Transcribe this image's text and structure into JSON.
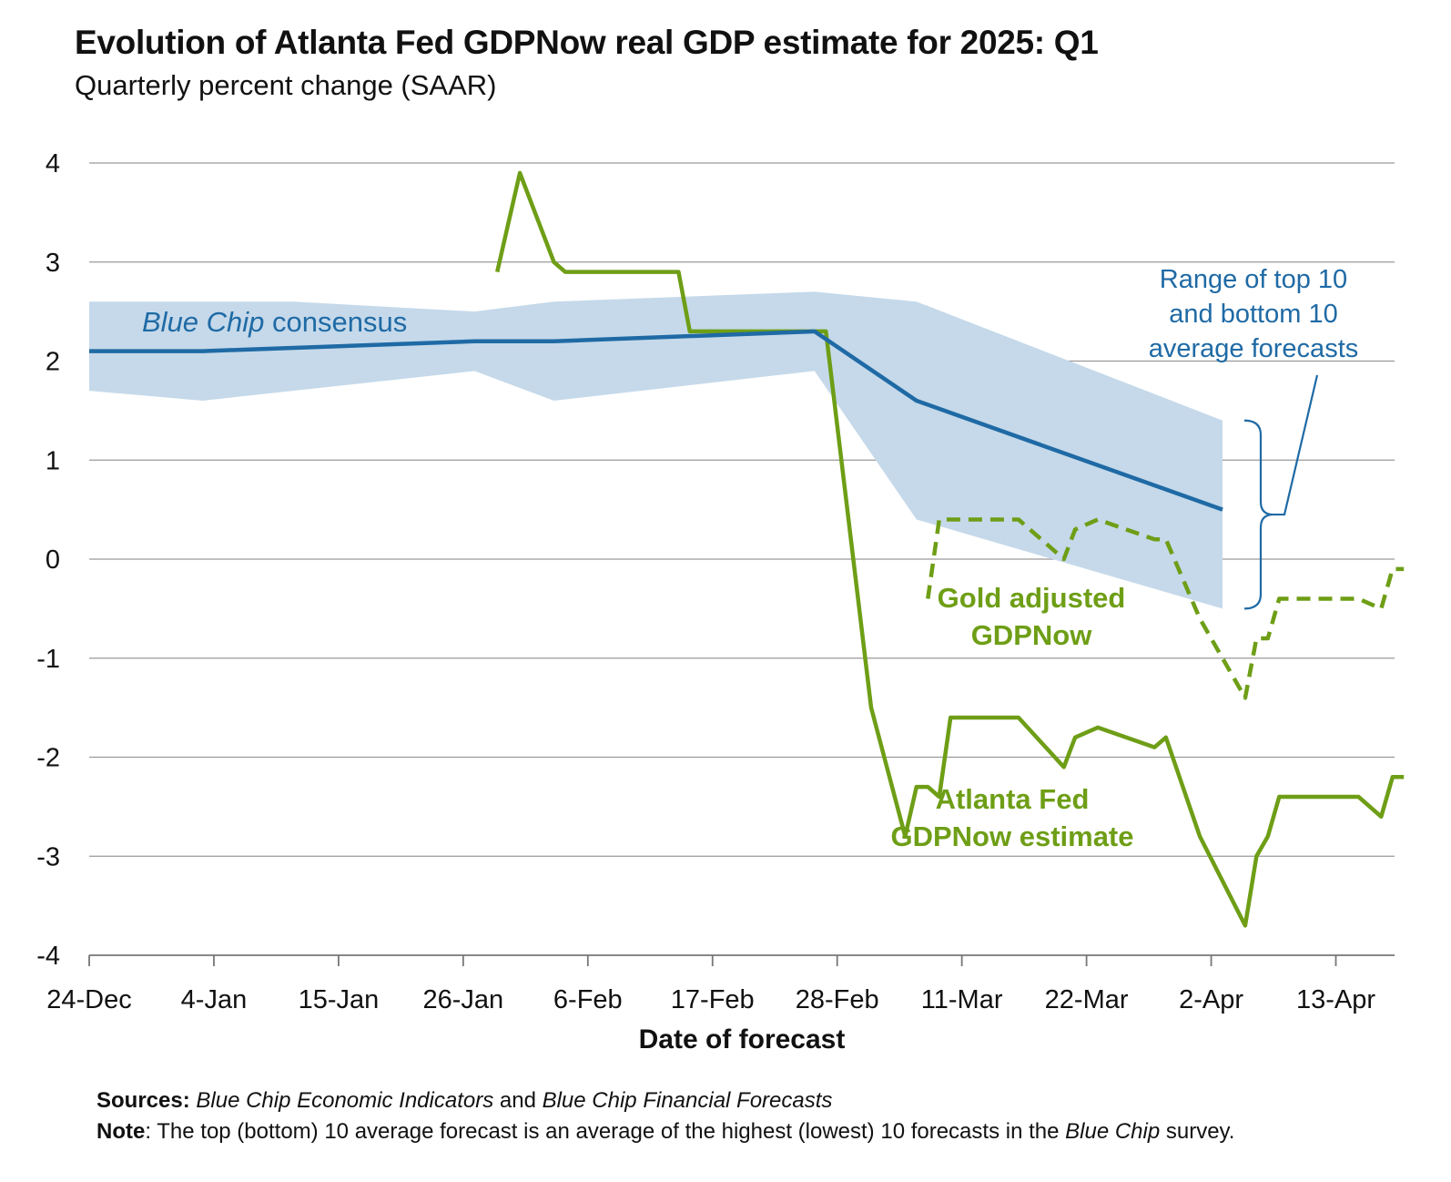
{
  "chart_data": {
    "type": "line",
    "title": "Evolution of Atlanta Fed GDPNow real GDP estimate for 2025: Q1",
    "subtitle": "Quarterly percent change (SAAR)",
    "xlabel": "Date of forecast",
    "ylabel": "",
    "ylim": [
      -4,
      4
    ],
    "yticks": [
      "4",
      "3",
      "2",
      "1",
      "0",
      "-1",
      "-2",
      "-3",
      "-4"
    ],
    "xlim": [
      "2024-12-24",
      "2025-04-18"
    ],
    "xticks": [
      {
        "date": "2024-12-24",
        "label": "24-Dec"
      },
      {
        "date": "2025-01-04",
        "label": "4-Jan"
      },
      {
        "date": "2025-01-15",
        "label": "15-Jan"
      },
      {
        "date": "2025-01-26",
        "label": "26-Jan"
      },
      {
        "date": "2025-02-06",
        "label": "6-Feb"
      },
      {
        "date": "2025-02-17",
        "label": "17-Feb"
      },
      {
        "date": "2025-02-28",
        "label": "28-Feb"
      },
      {
        "date": "2025-03-11",
        "label": "11-Mar"
      },
      {
        "date": "2025-03-22",
        "label": "22-Mar"
      },
      {
        "date": "2025-04-02",
        "label": "2-Apr"
      },
      {
        "date": "2025-04-13",
        "label": "13-Apr"
      }
    ],
    "grid": "horizontal",
    "range_band": {
      "upper": [
        [
          "2024-12-24",
          2.6
        ],
        [
          "2025-01-11",
          2.6
        ],
        [
          "2025-01-27",
          2.5
        ],
        [
          "2025-02-03",
          2.6
        ],
        [
          "2025-02-26",
          2.7
        ],
        [
          "2025-03-07",
          2.6
        ],
        [
          "2025-04-03",
          1.4
        ]
      ],
      "lower": [
        [
          "2024-12-24",
          1.7
        ],
        [
          "2025-01-03",
          1.6
        ],
        [
          "2025-01-27",
          1.9
        ],
        [
          "2025-02-03",
          1.6
        ],
        [
          "2025-02-26",
          1.9
        ],
        [
          "2025-03-07",
          0.4
        ],
        [
          "2025-04-03",
          -0.5
        ]
      ]
    },
    "series": [
      {
        "name": "Blue Chip consensus",
        "color": "#1f6aa5",
        "style": "solid",
        "points": [
          [
            "2024-12-24",
            2.1
          ],
          [
            "2025-01-03",
            2.1
          ],
          [
            "2025-01-27",
            2.2
          ],
          [
            "2025-02-03",
            2.2
          ],
          [
            "2025-02-26",
            2.3
          ],
          [
            "2025-03-07",
            1.6
          ],
          [
            "2025-04-03",
            0.5
          ]
        ]
      },
      {
        "name": "Atlanta Fed GDPNow estimate",
        "color": "#6e9e16",
        "style": "solid",
        "points": [
          [
            "2025-01-29",
            2.9
          ],
          [
            "2025-01-31",
            3.9
          ],
          [
            "2025-02-03",
            3.0
          ],
          [
            "2025-02-04",
            2.9
          ],
          [
            "2025-02-14",
            2.9
          ],
          [
            "2025-02-15",
            2.3
          ],
          [
            "2025-02-27",
            2.3
          ],
          [
            "2025-03-03",
            -1.5
          ],
          [
            "2025-03-06",
            -2.8
          ],
          [
            "2025-03-07",
            -2.3
          ],
          [
            "2025-03-08",
            -2.3
          ],
          [
            "2025-03-09",
            -2.4
          ],
          [
            "2025-03-10",
            -1.6
          ],
          [
            "2025-03-16",
            -1.6
          ],
          [
            "2025-03-20",
            -2.1
          ],
          [
            "2025-03-21",
            -1.8
          ],
          [
            "2025-03-23",
            -1.7
          ],
          [
            "2025-03-28",
            -1.9
          ],
          [
            "2025-03-29",
            -1.8
          ],
          [
            "2025-04-01",
            -2.8
          ],
          [
            "2025-04-05",
            -3.7
          ],
          [
            "2025-04-06",
            -3.0
          ],
          [
            "2025-04-07",
            -2.8
          ],
          [
            "2025-04-08",
            -2.4
          ],
          [
            "2025-04-15",
            -2.4
          ],
          [
            "2025-04-17",
            -2.6
          ],
          [
            "2025-04-18",
            -2.2
          ],
          [
            "2025-04-19",
            -2.2
          ]
        ]
      },
      {
        "name": "Gold adjusted GDPNow",
        "color": "#6e9e16",
        "style": "dashed",
        "points": [
          [
            "2025-03-08",
            -0.4
          ],
          [
            "2025-03-09",
            0.4
          ],
          [
            "2025-03-16",
            0.4
          ],
          [
            "2025-03-20",
            0.0
          ],
          [
            "2025-03-21",
            0.3
          ],
          [
            "2025-03-23",
            0.4
          ],
          [
            "2025-03-28",
            0.2
          ],
          [
            "2025-03-29",
            0.2
          ],
          [
            "2025-04-01",
            -0.6
          ],
          [
            "2025-04-05",
            -1.4
          ],
          [
            "2025-04-06",
            -0.8
          ],
          [
            "2025-04-07",
            -0.8
          ],
          [
            "2025-04-08",
            -0.4
          ],
          [
            "2025-04-15",
            -0.4
          ],
          [
            "2025-04-17",
            -0.5
          ],
          [
            "2025-04-18",
            -0.1
          ],
          [
            "2025-04-19",
            -0.1
          ]
        ]
      }
    ],
    "annotations": {
      "consensus_label_italic": "Blue Chip",
      "consensus_label_rest": " consensus",
      "gold_label": [
        "Gold adjusted",
        "GDPNow"
      ],
      "gdpnow_label": [
        "Atlanta Fed",
        "GDPNow estimate"
      ],
      "range_label": [
        "Range of top 10",
        "and bottom 10",
        "average forecasts"
      ]
    }
  },
  "footnote": {
    "sources_label": "Sources:",
    "sources_italic_1": "Blue Chip Economic Indicators",
    "sources_mid": " and ",
    "sources_italic_2": "Blue Chip Financial Forecasts",
    "note_label": "Note",
    "note_text": ": The top (bottom) 10 average forecast is an average of the highest (lowest) 10 forecasts in the ",
    "note_italic": "Blue Chip",
    "note_tail": " survey."
  },
  "colors": {
    "band": "#c5d9ea",
    "consensus": "#1f6aa5",
    "gdpnow": "#6e9e16",
    "grid": "#9a9a9a"
  }
}
